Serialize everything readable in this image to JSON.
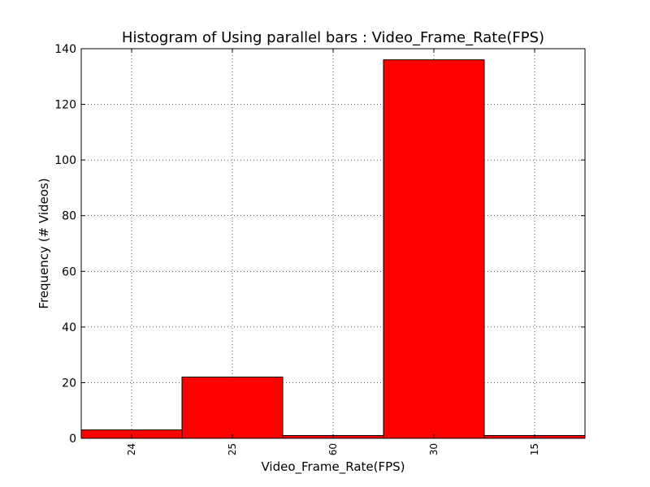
{
  "chart_data": {
    "type": "bar",
    "title": "Histogram of Using parallel bars : Video_Frame_Rate(FPS)",
    "xlabel": "Video_Frame_Rate(FPS)",
    "ylabel": "Frequency (# Videos)",
    "categories": [
      "24",
      "25",
      "60",
      "30",
      "15"
    ],
    "values": [
      3,
      22,
      1,
      136,
      1
    ],
    "ylim": [
      0,
      140
    ],
    "yticks": [
      "0",
      "20",
      "40",
      "60",
      "80",
      "100",
      "120",
      "140"
    ],
    "grid": true,
    "bar_color": "#ff0000",
    "edge_color": "#000000"
  }
}
